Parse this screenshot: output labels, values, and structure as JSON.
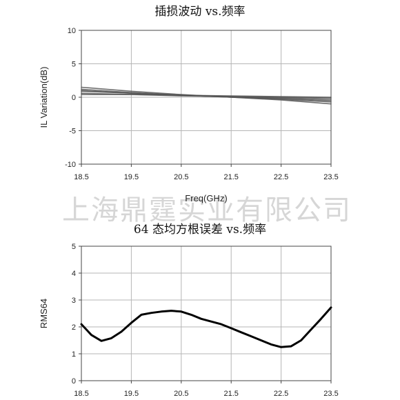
{
  "watermark": "上海鼎霆实业有限公司",
  "chart_data": [
    {
      "type": "line",
      "title": "插损波动 vs.频率",
      "xlabel": "Freq(GHz)",
      "ylabel": "IL Variation(dB)",
      "xlim": [
        18.5,
        23.5
      ],
      "ylim": [
        -10,
        10
      ],
      "xticks": [
        "18.5",
        "19.5",
        "20.5",
        "21.5",
        "22.5",
        "23.5"
      ],
      "yticks": [
        "10",
        "5",
        "0",
        "-5",
        "-10"
      ],
      "grid": true,
      "series_color": "#555555",
      "series": [
        {
          "x": [
            18.5,
            19.5,
            20.5,
            21.5,
            22.5,
            23.5
          ],
          "y": [
            1.5,
            0.9,
            0.4,
            0.0,
            -0.4,
            -1.0
          ]
        },
        {
          "x": [
            18.5,
            19.5,
            20.5,
            21.5,
            22.5,
            23.5
          ],
          "y": [
            1.2,
            0.7,
            0.3,
            0.0,
            -0.3,
            -0.7
          ]
        },
        {
          "x": [
            18.5,
            19.5,
            20.5,
            21.5,
            22.5,
            23.5
          ],
          "y": [
            0.9,
            0.6,
            0.3,
            0.1,
            -0.1,
            -0.3
          ]
        },
        {
          "x": [
            18.5,
            19.5,
            20.5,
            21.5,
            22.5,
            23.5
          ],
          "y": [
            0.6,
            0.4,
            0.2,
            0.1,
            0.0,
            -0.1
          ]
        },
        {
          "x": [
            18.5,
            19.5,
            20.5,
            21.5,
            22.5,
            23.5
          ],
          "y": [
            1.0,
            0.6,
            0.3,
            0.0,
            -0.2,
            -0.5
          ]
        },
        {
          "x": [
            18.5,
            19.5,
            20.5,
            21.5,
            22.5,
            23.5
          ],
          "y": [
            0.4,
            0.4,
            0.3,
            0.2,
            0.1,
            0.0
          ]
        }
      ]
    },
    {
      "type": "line",
      "title": "64 态均方根误差 vs.频率",
      "xlabel": "",
      "ylabel": "RMS64",
      "xlim": [
        18.5,
        23.5
      ],
      "ylim": [
        0,
        5
      ],
      "xticks": [
        "18.5",
        "19.5",
        "20.5",
        "21.5",
        "22.5",
        "23.5"
      ],
      "yticks": [
        "5",
        "4",
        "3",
        "2",
        "1",
        "0"
      ],
      "grid": true,
      "series_color": "#000000",
      "series": [
        {
          "x": [
            18.5,
            18.7,
            18.9,
            19.1,
            19.3,
            19.5,
            19.7,
            19.9,
            20.1,
            20.3,
            20.5,
            20.7,
            20.9,
            21.1,
            21.3,
            21.5,
            21.7,
            21.9,
            22.1,
            22.3,
            22.5,
            22.7,
            22.9,
            23.1,
            23.3,
            23.5
          ],
          "y": [
            2.1,
            1.7,
            1.48,
            1.58,
            1.82,
            2.15,
            2.45,
            2.52,
            2.57,
            2.6,
            2.57,
            2.45,
            2.3,
            2.2,
            2.1,
            1.95,
            1.8,
            1.65,
            1.5,
            1.35,
            1.25,
            1.28,
            1.5,
            1.9,
            2.3,
            2.72
          ]
        }
      ]
    }
  ]
}
